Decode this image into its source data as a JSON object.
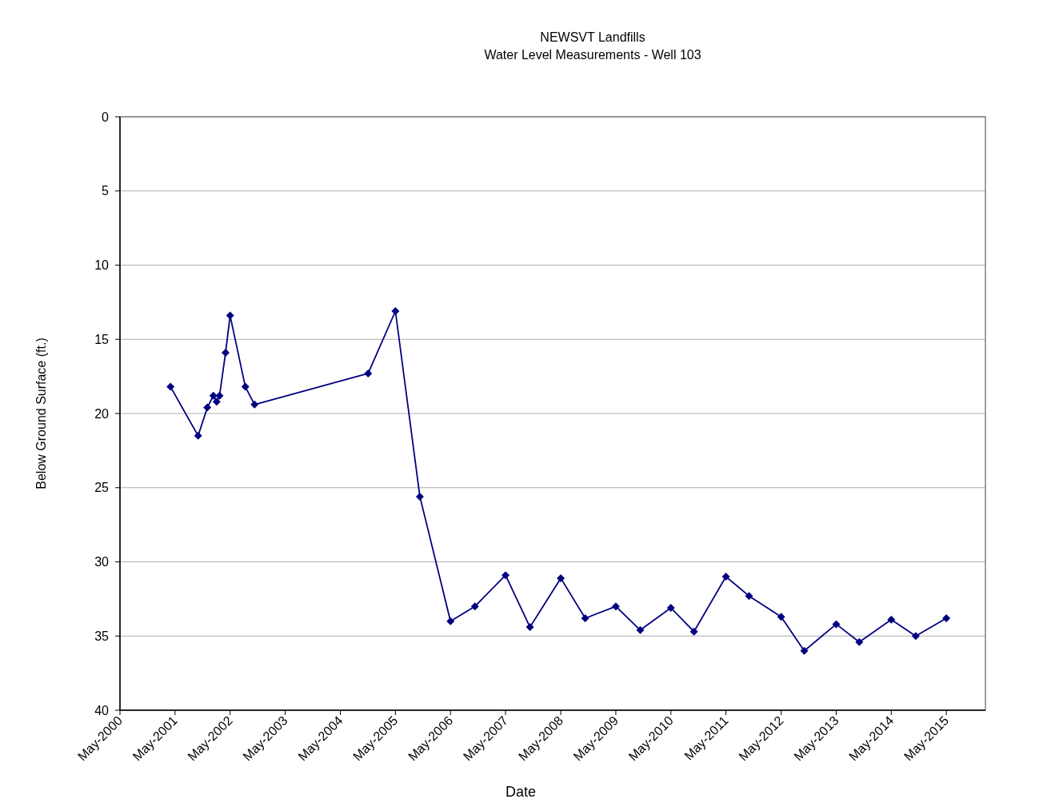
{
  "chart_data": {
    "type": "line",
    "title": "NEWSVT Landfills",
    "subtitle": "Water Level Measurements - Well 103",
    "xlabel": "Date",
    "ylabel": "Below Ground Surface (ft.)",
    "x": [
      "2001-04-01",
      "2001-10-01",
      "2001-12-01",
      "2002-01-10",
      "2002-02-01",
      "2002-02-20",
      "2002-04-01",
      "2002-05-01",
      "2002-08-10",
      "2002-10-10",
      "2004-11-01",
      "2005-05-01",
      "2005-10-10",
      "2006-05-01",
      "2006-10-10",
      "2007-05-01",
      "2007-10-10",
      "2008-05-01",
      "2008-10-10",
      "2009-05-01",
      "2009-10-10",
      "2010-05-01",
      "2010-10-01",
      "2011-05-01",
      "2011-10-01",
      "2012-05-01",
      "2012-10-01",
      "2013-05-01",
      "2013-10-01",
      "2014-05-01",
      "2014-10-10",
      "2015-05-01"
    ],
    "series": [
      {
        "color": "#000080",
        "values": [
          18.2,
          21.5,
          19.6,
          18.8,
          19.2,
          18.8,
          15.9,
          13.4,
          18.2,
          19.4,
          17.3,
          13.1,
          25.6,
          34.0,
          33.0,
          30.9,
          34.4,
          31.1,
          33.8,
          33.0,
          34.6,
          33.1,
          34.7,
          31.0,
          32.3,
          33.7,
          36.0,
          34.2,
          35.4,
          33.9,
          35.0,
          33.8
        ]
      }
    ],
    "xlim": [
      "2000-05-01",
      "2016-01-15"
    ],
    "xticks": [
      {
        "value": "2000-05-01",
        "label": "May-2000"
      },
      {
        "value": "2001-05-01",
        "label": "May-2001"
      },
      {
        "value": "2002-05-01",
        "label": "May-2002"
      },
      {
        "value": "2003-05-01",
        "label": "May-2003"
      },
      {
        "value": "2004-05-01",
        "label": "May-2004"
      },
      {
        "value": "2005-05-01",
        "label": "May-2005"
      },
      {
        "value": "2006-05-01",
        "label": "May-2006"
      },
      {
        "value": "2007-05-01",
        "label": "May-2007"
      },
      {
        "value": "2008-05-01",
        "label": "May-2008"
      },
      {
        "value": "2009-05-01",
        "label": "May-2009"
      },
      {
        "value": "2010-05-01",
        "label": "May-2010"
      },
      {
        "value": "2011-05-01",
        "label": "May-2011"
      },
      {
        "value": "2012-05-01",
        "label": "May-2012"
      },
      {
        "value": "2013-05-01",
        "label": "May-2013"
      },
      {
        "value": "2014-05-01",
        "label": "May-2014"
      },
      {
        "value": "2015-05-01",
        "label": "May-2015"
      }
    ],
    "ylim": [
      40,
      0
    ],
    "yticks": [
      0,
      5,
      10,
      15,
      20,
      25,
      30,
      35,
      40
    ],
    "grid": "y",
    "marker": "diamond",
    "line_style": "solid"
  }
}
